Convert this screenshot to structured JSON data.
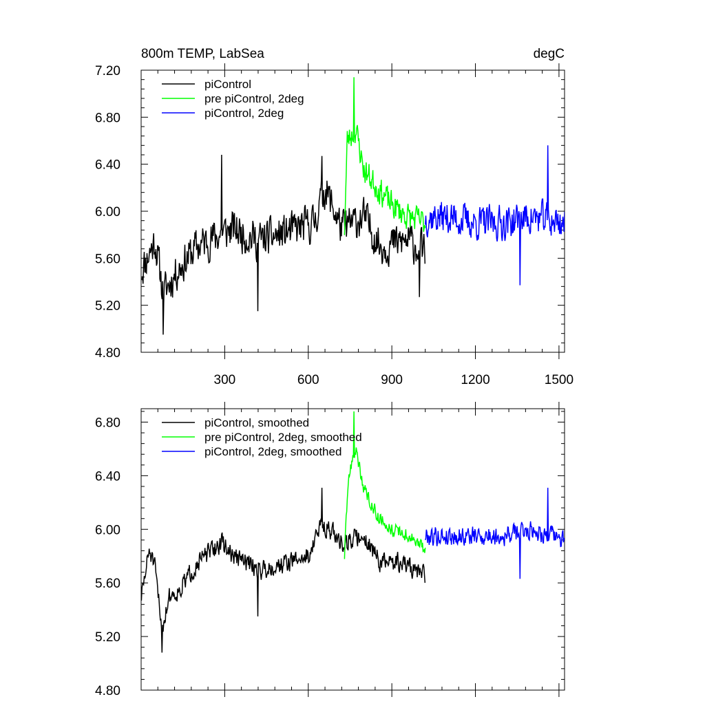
{
  "chart_data": [
    {
      "type": "line",
      "title": "800m TEMP, LabSea",
      "units": "degC",
      "xlim": [
        0,
        1520
      ],
      "ylim": [
        4.8,
        7.2
      ],
      "xticks": [
        300,
        600,
        900,
        1200,
        1500
      ],
      "yticks": [
        4.8,
        5.2,
        5.6,
        6.0,
        6.4,
        6.8,
        7.2
      ],
      "ytick_labels": [
        "4.80",
        "5.20",
        "5.60",
        "6.00",
        "6.40",
        "6.80",
        "7.20"
      ],
      "legend_location": "top-left",
      "series": [
        {
          "name": "piControl",
          "color": "#000000",
          "x_start": 1,
          "x_end": 1020,
          "anchors": [
            [
              1,
              5.5
            ],
            [
              50,
              5.75
            ],
            [
              80,
              5.3
            ],
            [
              130,
              5.5
            ],
            [
              200,
              5.7
            ],
            [
              280,
              5.8
            ],
            [
              330,
              5.85
            ],
            [
              420,
              5.75
            ],
            [
              500,
              5.8
            ],
            [
              620,
              5.9
            ],
            [
              660,
              6.2
            ],
            [
              720,
              5.85
            ],
            [
              800,
              5.95
            ],
            [
              860,
              5.7
            ],
            [
              960,
              5.75
            ],
            [
              1020,
              5.65
            ]
          ],
          "noise": 0.22,
          "seed": 11,
          "annotations_min": [
            [
              80,
              4.95
            ],
            [
              420,
              5.15
            ],
            [
              1000,
              5.27
            ]
          ],
          "annotations_max": [
            [
              290,
              6.48
            ],
            [
              650,
              6.47
            ]
          ]
        },
        {
          "name": "pre piControl, 2deg",
          "color": "#00ff00",
          "x_start": 730,
          "x_end": 1020,
          "anchors": [
            [
              730,
              5.85
            ],
            [
              740,
              6.6
            ],
            [
              770,
              6.7
            ],
            [
              800,
              6.35
            ],
            [
              850,
              6.2
            ],
            [
              900,
              6.05
            ],
            [
              960,
              5.95
            ],
            [
              1020,
              5.9
            ]
          ],
          "noise": 0.16,
          "seed": 23,
          "annotations_max": [
            [
              765,
              7.14
            ]
          ]
        },
        {
          "name": "piControl, 2deg",
          "color": "#0000ff",
          "x_start": 1020,
          "x_end": 1520,
          "anchors": [
            [
              1020,
              5.95
            ],
            [
              1100,
              5.95
            ],
            [
              1200,
              5.9
            ],
            [
              1300,
              5.9
            ],
            [
              1400,
              5.95
            ],
            [
              1520,
              5.9
            ]
          ],
          "noise": 0.2,
          "seed": 37,
          "annotations_min": [
            [
              1360,
              5.37
            ]
          ],
          "annotations_max": [
            [
              1460,
              6.56
            ]
          ]
        }
      ]
    },
    {
      "type": "line",
      "title": "",
      "xlim": [
        0,
        1520
      ],
      "ylim": [
        4.8,
        6.9
      ],
      "xticks": [
        300,
        600,
        900,
        1200,
        1500
      ],
      "yticks": [
        4.8,
        5.2,
        5.6,
        6.0,
        6.4,
        6.8
      ],
      "ytick_labels": [
        "4.80",
        "5.20",
        "5.60",
        "6.00",
        "6.40",
        "6.80"
      ],
      "legend_location": "top-left",
      "series": [
        {
          "name": "piControl, smoothed",
          "color": "#000000",
          "x_start": 1,
          "x_end": 1020,
          "anchors": [
            [
              1,
              5.5
            ],
            [
              30,
              5.85
            ],
            [
              50,
              5.7
            ],
            [
              75,
              5.25
            ],
            [
              100,
              5.5
            ],
            [
              140,
              5.55
            ],
            [
              200,
              5.75
            ],
            [
              290,
              5.9
            ],
            [
              330,
              5.8
            ],
            [
              430,
              5.7
            ],
            [
              520,
              5.75
            ],
            [
              600,
              5.8
            ],
            [
              650,
              6.05
            ],
            [
              720,
              5.9
            ],
            [
              800,
              5.95
            ],
            [
              860,
              5.75
            ],
            [
              940,
              5.75
            ],
            [
              1020,
              5.65
            ]
          ],
          "noise": 0.1,
          "seed": 51,
          "annotations_min": [
            [
              75,
              5.08
            ],
            [
              420,
              5.35
            ]
          ],
          "annotations_max": [
            [
              650,
              6.31
            ]
          ]
        },
        {
          "name": "pre piControl, 2deg, smoothed",
          "color": "#00ff00",
          "x_start": 730,
          "x_end": 1020,
          "anchors": [
            [
              730,
              5.8
            ],
            [
              745,
              6.4
            ],
            [
              770,
              6.6
            ],
            [
              800,
              6.3
            ],
            [
              850,
              6.1
            ],
            [
              900,
              6.0
            ],
            [
              960,
              5.95
            ],
            [
              1020,
              5.85
            ]
          ],
          "noise": 0.07,
          "seed": 63,
          "annotations_max": [
            [
              765,
              6.88
            ]
          ]
        },
        {
          "name": "piControl, 2deg, smoothed",
          "color": "#0000ff",
          "x_start": 1020,
          "x_end": 1520,
          "anchors": [
            [
              1020,
              5.95
            ],
            [
              1100,
              5.95
            ],
            [
              1200,
              5.95
            ],
            [
              1300,
              5.95
            ],
            [
              1400,
              6.0
            ],
            [
              1520,
              5.92
            ]
          ],
          "noise": 0.1,
          "seed": 79,
          "annotations_min": [
            [
              1360,
              5.63
            ]
          ],
          "annotations_max": [
            [
              1460,
              6.31
            ]
          ]
        }
      ]
    }
  ]
}
